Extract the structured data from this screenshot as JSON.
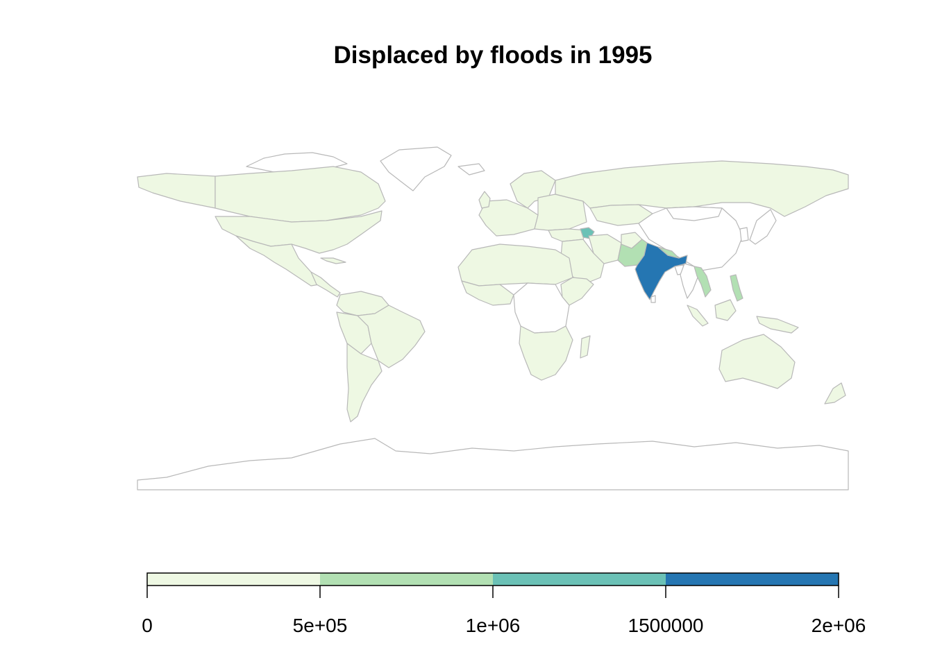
{
  "title": "Displaced by floods in 1995",
  "legend": {
    "breaks": [
      0,
      500000,
      1000000,
      1500000,
      2000000
    ],
    "tick_labels": [
      "0",
      "5e+05",
      "1e+06",
      "1500000",
      "2e+06"
    ],
    "bin_colors": [
      "#eef8e3",
      "#b2e0b3",
      "#6bc1b6",
      "#2576b2"
    ]
  },
  "colors": {
    "no_data": "#ffffff",
    "border": "#b8b8b8"
  },
  "map_data": {
    "type": "choropleth",
    "regions": [
      {
        "name": "India",
        "bin": 3
      },
      {
        "name": "Pakistan",
        "bin": 1
      },
      {
        "name": "Nepal",
        "bin": 1
      },
      {
        "name": "Laos",
        "bin": 1
      },
      {
        "name": "Vietnam",
        "bin": 1
      },
      {
        "name": "Philippines",
        "bin": 1
      },
      {
        "name": "Armenia/Azerbaijan",
        "bin": 2
      },
      {
        "name": "Canada",
        "bin": 0
      },
      {
        "name": "United States",
        "bin": 0
      },
      {
        "name": "Mexico",
        "bin": 0
      },
      {
        "name": "Brazil",
        "bin": 0
      },
      {
        "name": "Argentina",
        "bin": 0
      },
      {
        "name": "Russia",
        "bin": 0
      },
      {
        "name": "Kazakhstan",
        "bin": 0
      },
      {
        "name": "Australia",
        "bin": 0
      },
      {
        "name": "South Africa",
        "bin": 0
      },
      {
        "name": "Indonesia",
        "bin": 0
      },
      {
        "name": "Europe",
        "bin": 0
      },
      {
        "name": "Saudi Arabia",
        "bin": 0
      },
      {
        "name": "Iran",
        "bin": 0
      }
    ]
  }
}
